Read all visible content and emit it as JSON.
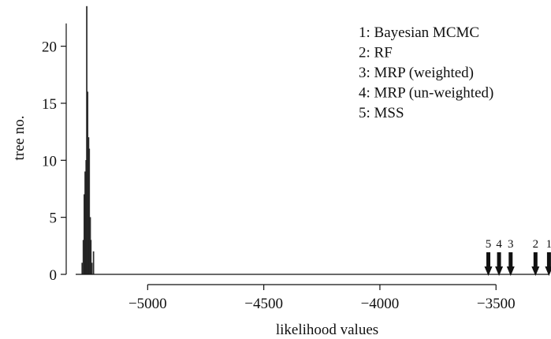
{
  "chart_data": {
    "type": "bar",
    "xlabel": "likelihood values",
    "ylabel": "tree no.",
    "xlim": [
      -5310,
      -3270
    ],
    "ylim": [
      0,
      23.5
    ],
    "x_ticks": [
      {
        "value": -5000,
        "label": "−5000"
      },
      {
        "value": -4500,
        "label": "−4500"
      },
      {
        "value": -4000,
        "label": "−4000"
      },
      {
        "value": -3500,
        "label": "−3500"
      }
    ],
    "y_ticks": [
      {
        "value": 0,
        "label": "0"
      },
      {
        "value": 5,
        "label": "5"
      },
      {
        "value": 10,
        "label": "10"
      },
      {
        "value": 15,
        "label": "15"
      },
      {
        "value": 20,
        "label": "20"
      }
    ],
    "histogram": {
      "bin_width": 4.5,
      "bins": [
        {
          "x": -5282,
          "count": 1
        },
        {
          "x": -5277,
          "count": 3
        },
        {
          "x": -5273,
          "count": 7
        },
        {
          "x": -5269,
          "count": 9
        },
        {
          "x": -5265,
          "count": 10
        },
        {
          "x": -5262,
          "count": 23.5
        },
        {
          "x": -5258,
          "count": 16
        },
        {
          "x": -5254,
          "count": 12
        },
        {
          "x": -5251,
          "count": 11
        },
        {
          "x": -5247,
          "count": 5
        },
        {
          "x": -5244,
          "count": 3
        },
        {
          "x": -5240,
          "count": 1
        },
        {
          "x": -5233,
          "count": 2
        }
      ]
    },
    "markers": [
      {
        "label": "5",
        "x": -3533
      },
      {
        "label": "4",
        "x": -3487
      },
      {
        "label": "3",
        "x": -3437
      },
      {
        "label": "2",
        "x": -3330
      },
      {
        "label": "1",
        "x": -3272
      }
    ],
    "legend": {
      "placement": "top-right",
      "entries": [
        "1: Bayesian MCMC",
        "2: RF",
        "3: MRP (weighted)",
        "4: MRP (un-weighted)",
        "5: MSS"
      ]
    },
    "colors": {
      "bars": "#333333",
      "axes": "#111111",
      "markers": "#111111"
    }
  }
}
